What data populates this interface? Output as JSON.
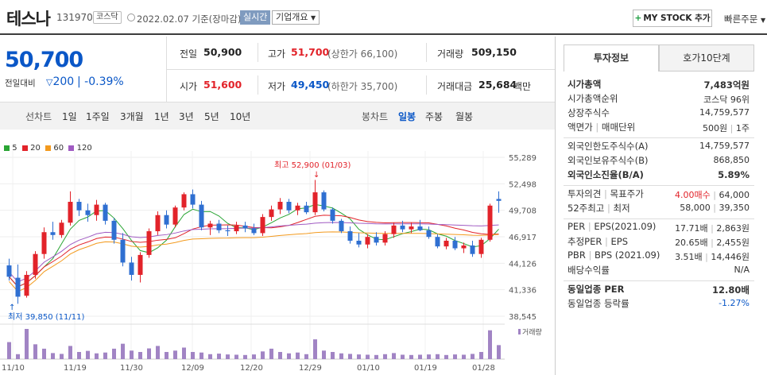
{
  "header": {
    "name": "테스나",
    "code": "131970",
    "market": "코스닥",
    "date": "2022.02.07 기준(장마감)",
    "live": "실시간",
    "corp_info": "기업개요",
    "mystock": "MY STOCK 추가",
    "quick_order": "빠른주문"
  },
  "price": {
    "current": "50,700",
    "change_label": "전일대비",
    "change": "200",
    "change_pct": "-0.39%"
  },
  "quote": {
    "prev_label": "전일",
    "prev": "50,900",
    "high_label": "고가",
    "high": "51,700",
    "upper_limit": "(상한가 66,100)",
    "volume_label": "거래량",
    "volume": "509,150",
    "open_label": "시가",
    "open": "51,600",
    "low_label": "저가",
    "low": "49,450",
    "lower_limit": "(하한가 35,700)",
    "amount_label": "거래대금",
    "amount": "25,684",
    "amount_unit": "백만"
  },
  "periods": {
    "line_label": "선차트",
    "items": [
      "1일",
      "1주일",
      "3개월",
      "1년",
      "3년",
      "5년",
      "10년"
    ],
    "candle_label": "봉차트",
    "candle_items": [
      "일봉",
      "주봉",
      "월봉"
    ],
    "selected_candle": "일봉"
  },
  "chart_data": {
    "type": "candlestick",
    "ma_legend": [
      {
        "name": "5",
        "color": "#2aa534"
      },
      {
        "name": "20",
        "color": "#e2232a"
      },
      {
        "name": "60",
        "color": "#f39a1e"
      },
      {
        "name": "120",
        "color": "#a05bc2"
      }
    ],
    "y_ticks": [
      "55,289",
      "52,498",
      "49,708",
      "46,917",
      "44,126",
      "41,336",
      "38,545"
    ],
    "y_range": [
      38545,
      55289
    ],
    "x_ticks": [
      "11/10",
      "11/19",
      "11/30",
      "12/09",
      "12/20",
      "12/29",
      "01/10",
      "01/19",
      "01/28"
    ],
    "max_annotation": "최고 52,900 (01/03)",
    "min_annotation": "최저 39,850 (11/11)",
    "volume_label": "거래량",
    "candles": [
      [
        43900,
        44600,
        42300,
        42700
      ],
      [
        42600,
        44000,
        39850,
        40600
      ],
      [
        40700,
        43300,
        40500,
        42900
      ],
      [
        42900,
        45400,
        42500,
        45100
      ],
      [
        45100,
        47900,
        44600,
        47400
      ],
      [
        47400,
        48500,
        46600,
        47100
      ],
      [
        47100,
        48700,
        46800,
        48400
      ],
      [
        48400,
        51700,
        48100,
        50600
      ],
      [
        50600,
        50900,
        49100,
        49700
      ],
      [
        49700,
        50400,
        48500,
        49200
      ],
      [
        49200,
        50800,
        48600,
        50300
      ],
      [
        50300,
        50500,
        48200,
        48600
      ],
      [
        48600,
        48900,
        46200,
        46600
      ],
      [
        46600,
        47300,
        43800,
        44200
      ],
      [
        44200,
        44800,
        42300,
        42900
      ],
      [
        42900,
        45300,
        42100,
        45000
      ],
      [
        45000,
        47800,
        44700,
        47500
      ],
      [
        47500,
        49600,
        47100,
        49200
      ],
      [
        49200,
        49700,
        47800,
        48200
      ],
      [
        48200,
        50200,
        47900,
        50000
      ],
      [
        50000,
        51600,
        49700,
        51400
      ],
      [
        51400,
        51900,
        49900,
        50300
      ],
      [
        50300,
        50700,
        47600,
        47900
      ],
      [
        47900,
        48600,
        47100,
        48300
      ],
      [
        48300,
        48700,
        47300,
        47600
      ],
      [
        47600,
        48100,
        47000,
        47500
      ],
      [
        47500,
        48500,
        47200,
        48100
      ],
      [
        48100,
        48500,
        47400,
        47800
      ],
      [
        47800,
        48300,
        47100,
        47300
      ],
      [
        47300,
        49300,
        47000,
        49000
      ],
      [
        49000,
        50200,
        48600,
        49800
      ],
      [
        49800,
        51000,
        49300,
        50600
      ],
      [
        50600,
        50900,
        49400,
        49700
      ],
      [
        49700,
        50500,
        49200,
        50200
      ],
      [
        50200,
        50600,
        49300,
        49500
      ],
      [
        49500,
        52900,
        49200,
        51600
      ],
      [
        51600,
        51800,
        49600,
        49800
      ],
      [
        49800,
        50000,
        48300,
        48600
      ],
      [
        48600,
        48800,
        47300,
        47500
      ],
      [
        47500,
        48000,
        46200,
        46500
      ],
      [
        46500,
        47300,
        45800,
        46100
      ],
      [
        46100,
        47200,
        45700,
        46900
      ],
      [
        46900,
        47400,
        46000,
        46300
      ],
      [
        46300,
        47500,
        46000,
        47200
      ],
      [
        47200,
        48400,
        46800,
        48100
      ],
      [
        48100,
        48600,
        47400,
        47700
      ],
      [
        47700,
        48400,
        47300,
        48000
      ],
      [
        48000,
        48700,
        47500,
        47600
      ],
      [
        47600,
        48000,
        46700,
        46900
      ],
      [
        46900,
        47200,
        45700,
        45900
      ],
      [
        45900,
        46800,
        45600,
        46500
      ],
      [
        46500,
        46900,
        45500,
        45700
      ],
      [
        45700,
        46300,
        45200,
        46000
      ],
      [
        46000,
        46500,
        44800,
        45100
      ],
      [
        45100,
        46800,
        44700,
        46600
      ],
      [
        46600,
        50400,
        46400,
        50200
      ],
      [
        50900,
        51700,
        49450,
        50700
      ]
    ],
    "volumes": [
      620,
      180,
      1100,
      540,
      380,
      220,
      190,
      480,
      260,
      300,
      210,
      240,
      380,
      560,
      310,
      260,
      390,
      480,
      260,
      310,
      420,
      260,
      240,
      180,
      200,
      170,
      160,
      150,
      170,
      280,
      380,
      260,
      210,
      240,
      180,
      720,
      310,
      260,
      210,
      190,
      170,
      160,
      150,
      180,
      220,
      160,
      150,
      160,
      170,
      180,
      150,
      170,
      160,
      190,
      260,
      1050,
      510
    ]
  },
  "side": {
    "tab_invest": "투자정보",
    "tab_hoga": "호가10단계",
    "rows1": [
      {
        "k": "시가총액",
        "v": "7,483억원",
        "bold": true
      },
      {
        "k": "시가총액순위",
        "v": "코스닥 96위"
      },
      {
        "k": "상장주식수",
        "v": "14,759,577"
      },
      {
        "k": "액면가",
        "k2": "매매단위",
        "v": "500원",
        "v2": "1주"
      }
    ],
    "rows2": [
      {
        "k": "외국인한도주식수(A)",
        "v": "14,759,577"
      },
      {
        "k": "외국인보유주식수(B)",
        "v": "868,850"
      },
      {
        "k": "외국인소진율(B/A)",
        "v": "5.89%",
        "bold": true
      }
    ],
    "rows3": [
      {
        "k": "투자의견",
        "k2": "목표주가",
        "v": "4.00매수",
        "v2": "64,000"
      },
      {
        "k": "52주최고",
        "k2": "최저",
        "v": "58,000",
        "v2": "39,350"
      }
    ],
    "rows4": [
      {
        "k": "PER",
        "k2": "EPS(2021.09)",
        "v": "17.71배",
        "v2": "2,863원"
      },
      {
        "k": "추정PER",
        "k2": "EPS",
        "v": "20.65배",
        "v2": "2,455원"
      },
      {
        "k": "PBR",
        "k2": "BPS (2021.09)",
        "v": "3.51배",
        "v2": "14,446원"
      },
      {
        "k": "배당수익률",
        "v": "N/A"
      }
    ],
    "rows5": [
      {
        "k": "동일업종 PER",
        "v": "12.80배",
        "bold": true
      },
      {
        "k": "동일업종 등락률",
        "v": "-1.27%"
      }
    ]
  }
}
